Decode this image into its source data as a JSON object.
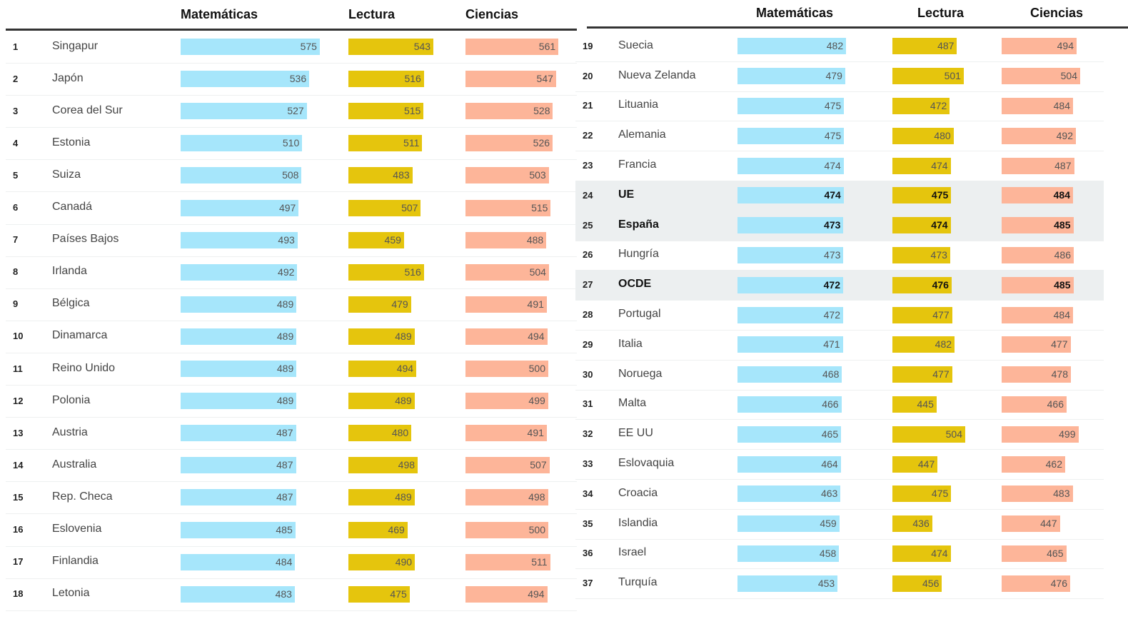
{
  "chart_data": {
    "type": "table",
    "columns": [
      "Matemáticas",
      "Lectura",
      "Ciencias"
    ],
    "colors": {
      "Matemáticas": "#a6e6fb",
      "Lectura": "#e5c50d",
      "Ciencias": "#fdb599",
      "highlight_row": "#eceff0"
    },
    "highlighted": [
      "UE",
      "España",
      "OCDE"
    ],
    "rows": [
      {
        "rank": 1,
        "country": "Singapur",
        "values": [
          575,
          543,
          561
        ]
      },
      {
        "rank": 2,
        "country": "Japón",
        "values": [
          536,
          516,
          547
        ]
      },
      {
        "rank": 3,
        "country": "Corea del Sur",
        "values": [
          527,
          515,
          528
        ]
      },
      {
        "rank": 4,
        "country": "Estonia",
        "values": [
          510,
          511,
          526
        ]
      },
      {
        "rank": 5,
        "country": "Suiza",
        "values": [
          508,
          483,
          503
        ]
      },
      {
        "rank": 6,
        "country": "Canadá",
        "values": [
          497,
          507,
          515
        ]
      },
      {
        "rank": 7,
        "country": "Países Bajos",
        "values": [
          493,
          459,
          488
        ]
      },
      {
        "rank": 8,
        "country": "Irlanda",
        "values": [
          492,
          516,
          504
        ]
      },
      {
        "rank": 9,
        "country": "Bélgica",
        "values": [
          489,
          479,
          491
        ]
      },
      {
        "rank": 10,
        "country": "Dinamarca",
        "values": [
          489,
          489,
          494
        ]
      },
      {
        "rank": 11,
        "country": "Reino Unido",
        "values": [
          489,
          494,
          500
        ]
      },
      {
        "rank": 12,
        "country": "Polonia",
        "values": [
          489,
          489,
          499
        ]
      },
      {
        "rank": 13,
        "country": "Austria",
        "values": [
          487,
          480,
          491
        ]
      },
      {
        "rank": 14,
        "country": "Australia",
        "values": [
          487,
          498,
          507
        ]
      },
      {
        "rank": 15,
        "country": "Rep. Checa",
        "values": [
          487,
          489,
          498
        ]
      },
      {
        "rank": 16,
        "country": "Eslovenia",
        "values": [
          485,
          469,
          500
        ]
      },
      {
        "rank": 17,
        "country": "Finlandia",
        "values": [
          484,
          490,
          511
        ]
      },
      {
        "rank": 18,
        "country": "Letonia",
        "values": [
          483,
          475,
          494
        ]
      },
      {
        "rank": 19,
        "country": "Suecia",
        "values": [
          482,
          487,
          494
        ]
      },
      {
        "rank": 20,
        "country": "Nueva Zelanda",
        "values": [
          479,
          501,
          504
        ]
      },
      {
        "rank": 21,
        "country": "Lituania",
        "values": [
          475,
          472,
          484
        ]
      },
      {
        "rank": 22,
        "country": "Alemania",
        "values": [
          475,
          480,
          492
        ]
      },
      {
        "rank": 23,
        "country": "Francia",
        "values": [
          474,
          474,
          487
        ]
      },
      {
        "rank": 24,
        "country": "UE",
        "values": [
          474,
          475,
          484
        ]
      },
      {
        "rank": 25,
        "country": "España",
        "values": [
          473,
          474,
          485
        ]
      },
      {
        "rank": 26,
        "country": "Hungría",
        "values": [
          473,
          473,
          486
        ]
      },
      {
        "rank": 27,
        "country": "OCDE",
        "values": [
          472,
          476,
          485
        ]
      },
      {
        "rank": 28,
        "country": "Portugal",
        "values": [
          472,
          477,
          484
        ]
      },
      {
        "rank": 29,
        "country": "Italia",
        "values": [
          471,
          482,
          477
        ]
      },
      {
        "rank": 30,
        "country": "Noruega",
        "values": [
          468,
          477,
          478
        ]
      },
      {
        "rank": 31,
        "country": "Malta",
        "values": [
          466,
          445,
          466
        ]
      },
      {
        "rank": 32,
        "country": "EE UU",
        "values": [
          465,
          504,
          499
        ]
      },
      {
        "rank": 33,
        "country": "Eslovaquia",
        "values": [
          464,
          447,
          462
        ]
      },
      {
        "rank": 34,
        "country": "Croacia",
        "values": [
          463,
          475,
          483
        ]
      },
      {
        "rank": 35,
        "country": "Islandia",
        "values": [
          459,
          436,
          447
        ]
      },
      {
        "rank": 36,
        "country": "Israel",
        "values": [
          458,
          474,
          465
        ]
      },
      {
        "rank": 37,
        "country": "Turquía",
        "values": [
          453,
          456,
          476
        ]
      }
    ]
  }
}
